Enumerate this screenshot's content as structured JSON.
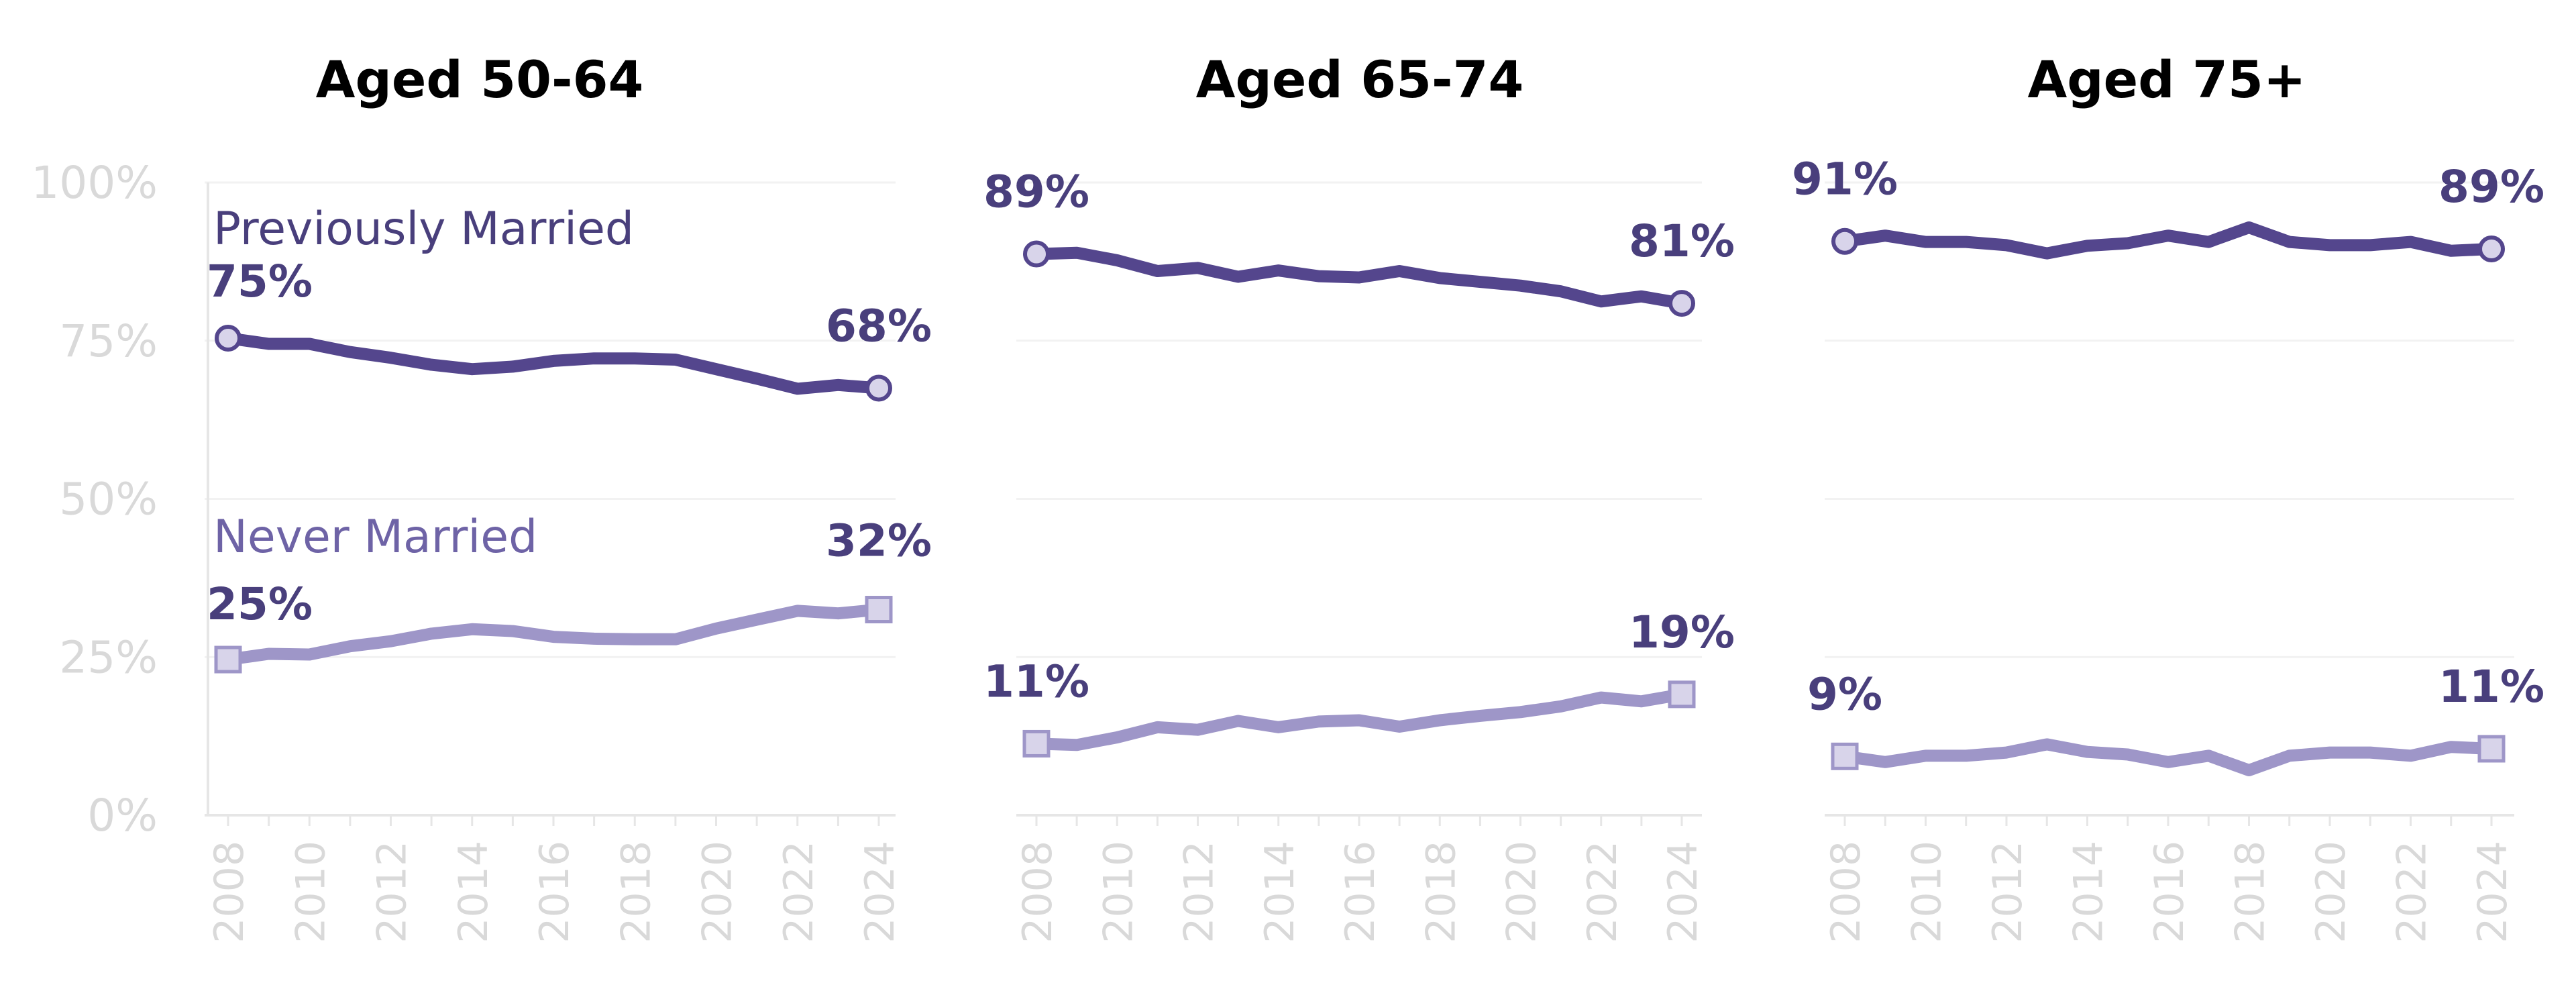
{
  "chart_data": [
    {
      "type": "line",
      "title": "Aged 50-64",
      "x": [
        2008,
        2009,
        2010,
        2011,
        2012,
        2013,
        2014,
        2015,
        2016,
        2017,
        2018,
        2019,
        2020,
        2021,
        2022,
        2023,
        2024
      ],
      "ylim": [
        0,
        100
      ],
      "yticks": [
        "0%",
        "25%",
        "50%",
        "75%",
        "100%"
      ],
      "xticks": [
        "2008",
        "2010",
        "2012",
        "2014",
        "2016",
        "2018",
        "2020",
        "2022",
        "2024"
      ],
      "grid": true,
      "series": [
        {
          "name": "Previously Married",
          "values": [
            75.4,
            74.5,
            74.5,
            73.2,
            72.3,
            71.2,
            70.5,
            70.9,
            71.8,
            72.2,
            72.2,
            72.0,
            70.5,
            69.0,
            67.4,
            68.0,
            67.5
          ],
          "start_label": "75%",
          "end_label": "68%",
          "marker": "circle"
        },
        {
          "name": "Never Married",
          "values": [
            24.6,
            25.5,
            25.4,
            26.7,
            27.5,
            28.7,
            29.4,
            29.1,
            28.2,
            27.9,
            27.8,
            27.8,
            29.5,
            30.9,
            32.3,
            31.9,
            32.5
          ],
          "start_label": "25%",
          "end_label": "32%",
          "marker": "square"
        }
      ]
    },
    {
      "type": "line",
      "title": "Aged 65-74",
      "x": [
        2008,
        2009,
        2010,
        2011,
        2012,
        2013,
        2014,
        2015,
        2016,
        2017,
        2018,
        2019,
        2020,
        2021,
        2022,
        2023,
        2024
      ],
      "ylim": [
        0,
        100
      ],
      "xticks": [
        "2008",
        "2010",
        "2012",
        "2014",
        "2016",
        "2018",
        "2020",
        "2022",
        "2024"
      ],
      "grid": true,
      "series": [
        {
          "values": [
            88.7,
            88.9,
            87.7,
            86.0,
            86.5,
            85.1,
            86.1,
            85.2,
            85.0,
            86.0,
            84.9,
            84.3,
            83.7,
            82.8,
            81.2,
            82.0,
            80.9
          ],
          "start_label": "89%",
          "end_label": "81%",
          "marker": "circle"
        },
        {
          "values": [
            11.3,
            11.1,
            12.3,
            13.9,
            13.5,
            14.9,
            13.9,
            14.8,
            15.0,
            14.0,
            15.0,
            15.7,
            16.3,
            17.2,
            18.6,
            18.0,
            19.1
          ],
          "start_label": "11%",
          "end_label": "19%",
          "marker": "square"
        }
      ]
    },
    {
      "type": "line",
      "title": "Aged 75+",
      "x": [
        2008,
        2009,
        2010,
        2011,
        2012,
        2013,
        2014,
        2015,
        2016,
        2017,
        2018,
        2019,
        2020,
        2021,
        2022,
        2023,
        2024
      ],
      "ylim": [
        0,
        100
      ],
      "xticks": [
        "2008",
        "2010",
        "2012",
        "2014",
        "2016",
        "2018",
        "2020",
        "2022",
        "2024"
      ],
      "grid": true,
      "series": [
        {
          "values": [
            90.7,
            91.6,
            90.6,
            90.6,
            90.1,
            88.8,
            90.0,
            90.4,
            91.6,
            90.6,
            92.9,
            90.6,
            90.1,
            90.1,
            90.6,
            89.2,
            89.5
          ],
          "start_label": "91%",
          "end_label": "89%",
          "marker": "circle"
        },
        {
          "values": [
            9.3,
            8.4,
            9.4,
            9.4,
            9.9,
            11.2,
            10.0,
            9.6,
            8.4,
            9.4,
            7.1,
            9.4,
            9.9,
            9.9,
            9.4,
            10.8,
            10.5
          ],
          "start_label": "9%",
          "end_label": "11%",
          "marker": "square"
        }
      ]
    }
  ],
  "colors": {
    "previously_married": "#54468d",
    "never_married": "#9e96c8",
    "marker_fill": "#d8d4ea",
    "label_text": "#493f7c",
    "tick_text": "#d9d9d9",
    "grid": "#f2f2f2",
    "axis": "#e6e6e6"
  }
}
